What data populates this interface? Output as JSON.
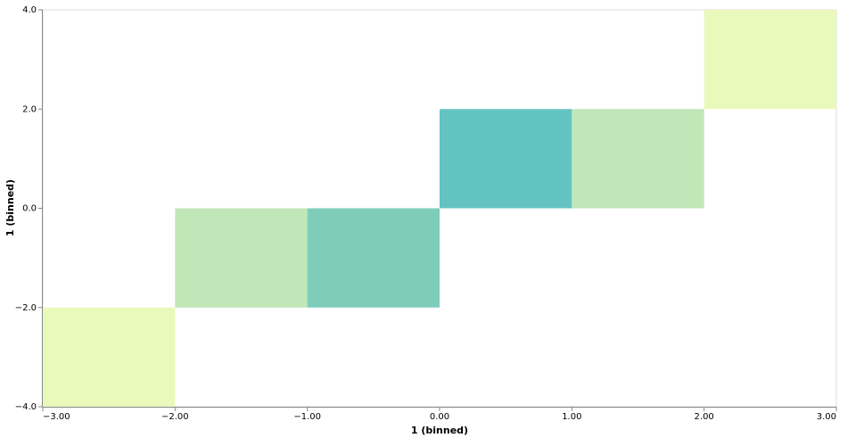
{
  "chart_data": {
    "type": "heatmap",
    "x_label": "1 (binned)",
    "y_label": "1 (binned)",
    "cells": [
      {
        "x": [
          -3,
          -2
        ],
        "y": [
          -4,
          -2
        ],
        "color": "#e9f8bb"
      },
      {
        "x": [
          -2,
          -1
        ],
        "y": [
          -2,
          0
        ],
        "color": "#c1e6b7"
      },
      {
        "x": [
          -1,
          0
        ],
        "y": [
          -2,
          0
        ],
        "color": "#7ecdbb"
      },
      {
        "x": [
          0,
          1
        ],
        "y": [
          0,
          2
        ],
        "color": "#63c3c1"
      },
      {
        "x": [
          1,
          2
        ],
        "y": [
          0,
          2
        ],
        "color": "#c1e6b7"
      },
      {
        "x": [
          2,
          3
        ],
        "y": [
          2,
          4
        ],
        "color": "#e9f8bb"
      }
    ],
    "xlim": [
      -3,
      3
    ],
    "xticks": [
      {
        "value": -3,
        "label": "−3.00"
      },
      {
        "value": -2,
        "label": "−2.00"
      },
      {
        "value": -1,
        "label": "−1.00"
      },
      {
        "value": 0,
        "label": "0.00"
      },
      {
        "value": 1,
        "label": "1.00"
      },
      {
        "value": 2,
        "label": "2.00"
      },
      {
        "value": 3,
        "label": "3.00"
      }
    ],
    "ylim": [
      -4,
      4
    ],
    "yticks": [
      {
        "value": -4,
        "label": "−4.0"
      },
      {
        "value": -2,
        "label": "−2.0"
      },
      {
        "value": 0,
        "label": "0.0"
      },
      {
        "value": 2,
        "label": "2.0"
      },
      {
        "value": 4,
        "label": "4.0"
      }
    ]
  }
}
